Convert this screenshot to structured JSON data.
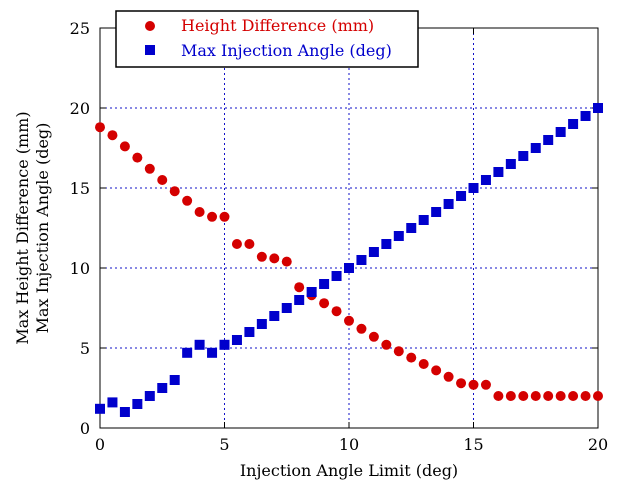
{
  "chart_data": {
    "type": "scatter",
    "xlabel": "Injection Angle Limit (deg)",
    "ylabel": [
      "Max Height Difference (mm)",
      "Max Injection Angle (deg)"
    ],
    "xlim": [
      0,
      20
    ],
    "ylim": [
      0,
      25
    ],
    "x_ticks": [
      "0",
      "5",
      "10",
      "15",
      "20"
    ],
    "y_ticks": [
      "0",
      "5",
      "10",
      "15",
      "20",
      "25"
    ],
    "grid": true,
    "legend_position": "top-left",
    "series": [
      {
        "name": "Height Difference (mm)",
        "color": "#d40000",
        "marker": "circle",
        "points": [
          [
            0,
            18.8
          ],
          [
            0.5,
            18.3
          ],
          [
            1,
            17.6
          ],
          [
            1.5,
            16.9
          ],
          [
            2,
            16.2
          ],
          [
            2.5,
            15.5
          ],
          [
            3,
            14.8
          ],
          [
            3.5,
            14.2
          ],
          [
            4,
            13.5
          ],
          [
            4.5,
            13.2
          ],
          [
            5,
            13.2
          ],
          [
            5.5,
            11.5
          ],
          [
            6,
            11.5
          ],
          [
            6.5,
            10.7
          ],
          [
            7,
            10.6
          ],
          [
            7.5,
            10.4
          ],
          [
            8,
            8.8
          ],
          [
            8.5,
            8.3
          ],
          [
            9,
            7.8
          ],
          [
            9.5,
            7.3
          ],
          [
            10,
            6.7
          ],
          [
            10.5,
            6.2
          ],
          [
            11,
            5.7
          ],
          [
            11.5,
            5.2
          ],
          [
            12,
            4.8
          ],
          [
            12.5,
            4.4
          ],
          [
            13,
            4.0
          ],
          [
            13.5,
            3.6
          ],
          [
            14,
            3.2
          ],
          [
            14.5,
            2.8
          ],
          [
            15,
            2.7
          ],
          [
            15.5,
            2.7
          ],
          [
            16,
            2.0
          ],
          [
            16.5,
            2.0
          ],
          [
            17,
            2.0
          ],
          [
            17.5,
            2.0
          ],
          [
            18,
            2.0
          ],
          [
            18.5,
            2.0
          ],
          [
            19,
            2.0
          ],
          [
            19.5,
            2.0
          ],
          [
            20,
            2.0
          ]
        ]
      },
      {
        "name": "Max Injection Angle (deg)",
        "color": "#0000cc",
        "marker": "square",
        "points": [
          [
            0,
            1.2
          ],
          [
            0.5,
            1.6
          ],
          [
            1,
            1.0
          ],
          [
            1.5,
            1.5
          ],
          [
            2,
            2.0
          ],
          [
            2.5,
            2.5
          ],
          [
            3,
            3.0
          ],
          [
            3.5,
            4.7
          ],
          [
            4,
            5.2
          ],
          [
            4.5,
            4.7
          ],
          [
            5,
            5.2
          ],
          [
            5.5,
            5.5
          ],
          [
            6,
            6.0
          ],
          [
            6.5,
            6.5
          ],
          [
            7,
            7.0
          ],
          [
            7.5,
            7.5
          ],
          [
            8,
            8.0
          ],
          [
            8.5,
            8.5
          ],
          [
            9,
            9.0
          ],
          [
            9.5,
            9.5
          ],
          [
            10,
            10.0
          ],
          [
            10.5,
            10.5
          ],
          [
            11,
            11.0
          ],
          [
            11.5,
            11.5
          ],
          [
            12,
            12.0
          ],
          [
            12.5,
            12.5
          ],
          [
            13,
            13.0
          ],
          [
            13.5,
            13.5
          ],
          [
            14,
            14.0
          ],
          [
            14.5,
            14.5
          ],
          [
            15,
            15.0
          ],
          [
            15.5,
            15.5
          ],
          [
            16,
            16.0
          ],
          [
            16.5,
            16.5
          ],
          [
            17,
            17.0
          ],
          [
            17.5,
            17.5
          ],
          [
            18,
            18.0
          ],
          [
            18.5,
            18.5
          ],
          [
            19,
            19.0
          ],
          [
            19.5,
            19.5
          ],
          [
            20,
            20.0
          ]
        ]
      }
    ]
  }
}
